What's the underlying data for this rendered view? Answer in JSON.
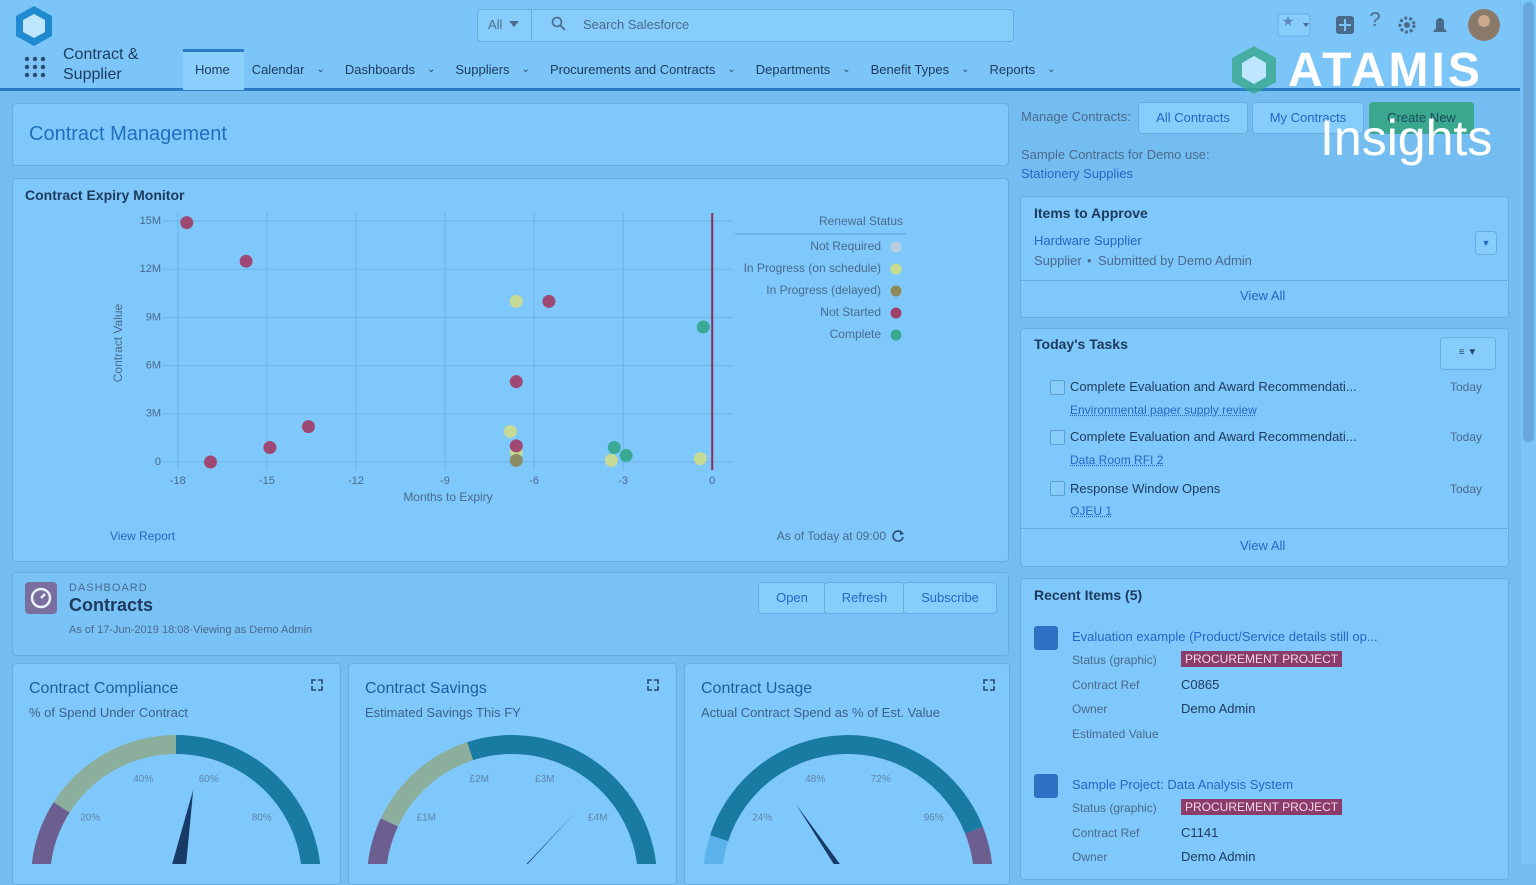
{
  "topbar": {
    "search_scope": "All",
    "search_placeholder": "Search Salesforce"
  },
  "app_name": "Contract & Supplier",
  "nav": [
    "Home",
    "Calendar",
    "Dashboards",
    "Suppliers",
    "Procurements and Contracts",
    "Departments",
    "Benefit Types",
    "Reports"
  ],
  "watermark": {
    "brand": "ATAMIS",
    "product": "Insights"
  },
  "page_title": "Contract Management",
  "chart_data": {
    "type": "scatter",
    "title": "Contract Expiry Monitor",
    "x_label": "Months to Expiry",
    "y_label": "Contract Value",
    "legend_title": "Renewal Status",
    "xlim": [
      -18.5,
      0.7
    ],
    "ylim": [
      -500000,
      15500000
    ],
    "xticks": [
      -18,
      -15,
      -12,
      -9,
      -6,
      -3,
      0
    ],
    "yticks": [
      0,
      {
        "value": 3000000,
        "label": "3M"
      },
      {
        "value": 6000000,
        "label": "6M"
      },
      {
        "value": 9000000,
        "label": "9M"
      },
      {
        "value": 12000000,
        "label": "12M"
      },
      {
        "value": 15000000,
        "label": "15M"
      }
    ],
    "grid": true,
    "series": [
      {
        "name": "Not Required",
        "color": "#b9cde0",
        "x": [],
        "values": []
      },
      {
        "name": "In Progress (on schedule)",
        "color": "#c9dc8e",
        "x": [
          -6.6,
          -6.8,
          -6.6,
          -3.4,
          -0.4
        ],
        "values": [
          10000000,
          1900000,
          600000,
          100000,
          200000
        ]
      },
      {
        "name": "In Progress (delayed)",
        "color": "#8c8a5c",
        "x": [
          -6.6
        ],
        "values": [
          100000
        ]
      },
      {
        "name": "Not Started",
        "color": "#a0426c",
        "x": [
          -17.7,
          -15.7,
          -5.5,
          -6.6,
          -13.6,
          -14.9,
          -16.9,
          -6.6
        ],
        "values": [
          14900000,
          12500000,
          10000000,
          5000000,
          2200000,
          900000,
          0,
          1000000
        ]
      },
      {
        "name": "Complete",
        "color": "#37a98f",
        "x": [
          -0.3,
          -3.3,
          -2.9
        ],
        "values": [
          8400000,
          900000,
          400000
        ]
      }
    ]
  },
  "chart_footer": {
    "link": "View Report",
    "timestamp": "As of Today at 09:00"
  },
  "dashboard": {
    "label": "DASHBOARD",
    "title": "Contracts",
    "meta": "As of 17-Jun-2019 18:08·Viewing as Demo Admin",
    "buttons": [
      "Open",
      "Refresh",
      "Subscribe"
    ]
  },
  "gauges": [
    {
      "title": "Contract Compliance",
      "subtitle": "% of Spend Under Contract",
      "lim": [
        0,
        100
      ],
      "value": 56,
      "ticks": [
        {
          "value": 20,
          "label": "20%"
        },
        {
          "value": 40,
          "label": "40%"
        },
        {
          "value": 60,
          "label": "60%"
        },
        {
          "value": 80,
          "label": "80%"
        }
      ]
    },
    {
      "title": "Contract Savings",
      "subtitle": "Estimated Savings This FY",
      "lim": [
        0,
        5000000
      ],
      "value": 3700000,
      "ticks": [
        {
          "value": 1000000,
          "label": "£1M"
        },
        {
          "value": 2000000,
          "label": "£2M"
        },
        {
          "value": 3000000,
          "label": "£3M"
        },
        {
          "value": 4000000,
          "label": "£4M"
        }
      ]
    },
    {
      "title": "Contract Usage",
      "subtitle": "Actual Contract Spend as % of Est. Value",
      "lim": [
        0,
        120
      ],
      "value": 37,
      "ticks": [
        {
          "value": 24,
          "label": "24%"
        },
        {
          "value": 48,
          "label": "48%"
        },
        {
          "value": 72,
          "label": "72%"
        },
        {
          "value": 96,
          "label": "96%"
        }
      ]
    }
  ],
  "manage": {
    "label": "Manage Contracts:",
    "buttons": [
      "All Contracts",
      "My Contracts",
      "Create New"
    ],
    "sample_label": "Sample Contracts for Demo use:",
    "sample_link": "Stationery Supplies"
  },
  "approve": {
    "title": "Items to Approve",
    "item": "Hardware Supplier",
    "type": "Supplier",
    "submitted": "Submitted by Demo Admin",
    "view_all": "View All"
  },
  "tasks": {
    "title": "Today's Tasks",
    "view_all": "View All",
    "items": [
      {
        "title": "Complete Evaluation and Award Recommendati...",
        "link": "Environmental paper supply review",
        "due": "Today"
      },
      {
        "title": "Complete Evaluation and Award Recommendati...",
        "link": "Data Room RFI 2",
        "due": "Today"
      },
      {
        "title": "Response Window Opens",
        "link": "OJEU 1",
        "due": "Today"
      }
    ]
  },
  "recent": {
    "title": "Recent Items (5)",
    "items": [
      {
        "title": "Evaluation example (Product/Service details still op...",
        "fields": [
          [
            "Status (graphic)",
            "PROCUREMENT PROJECT"
          ],
          [
            "Contract Ref",
            "C0865"
          ],
          [
            "Owner",
            "Demo Admin"
          ],
          [
            "Estimated Value"
          ]
        ]
      },
      {
        "title": "Sample Project: Data Analysis System",
        "fields": [
          [
            "Status (graphic)",
            "PROCUREMENT PROJECT"
          ],
          [
            "Contract Ref",
            "C1141"
          ],
          [
            "Owner",
            "Demo Admin"
          ]
        ]
      }
    ]
  }
}
